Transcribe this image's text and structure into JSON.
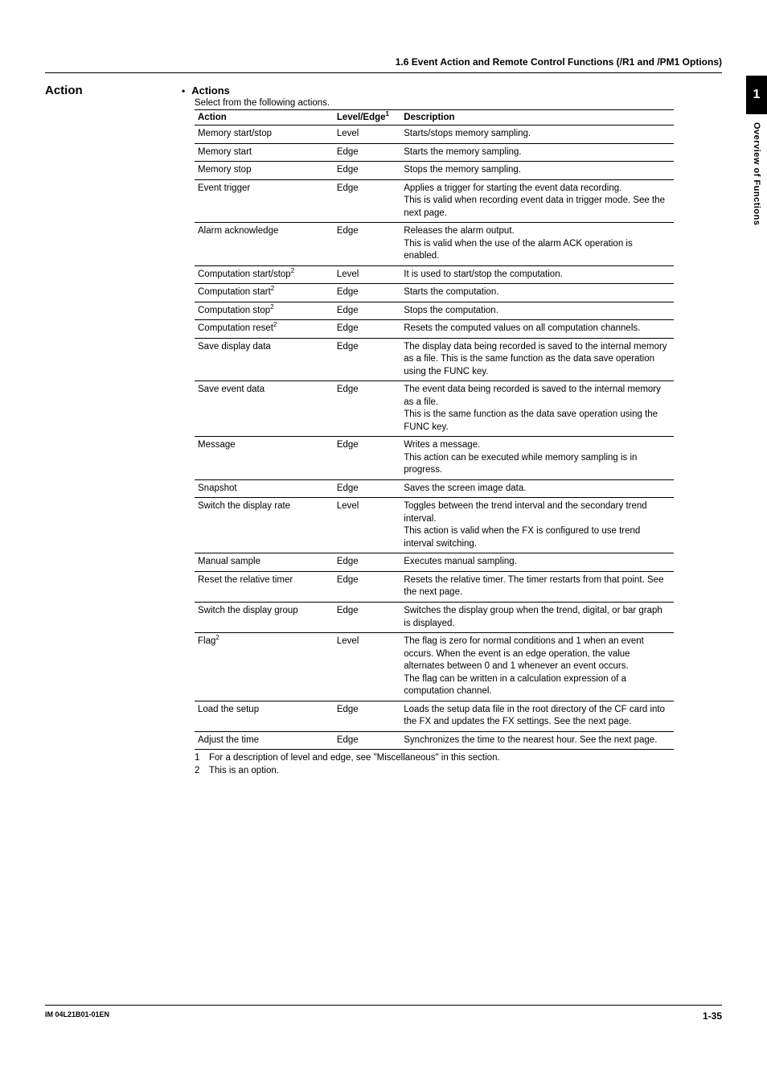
{
  "header": {
    "section_title": "1.6  Event Action and Remote Control Functions (/R1 and /PM1 Options)"
  },
  "side_heading": "Action",
  "bullet_title": "Actions",
  "intro": "Select from the following actions.",
  "columns": {
    "action": "Action",
    "level_edge": "Level/Edge",
    "level_edge_sup": "1",
    "description": "Description"
  },
  "rows": [
    {
      "action": "Memory start/stop",
      "level": "Level",
      "desc": "Starts/stops memory sampling."
    },
    {
      "action": "Memory start",
      "level": "Edge",
      "desc": "Starts the memory sampling."
    },
    {
      "action": "Memory stop",
      "level": "Edge",
      "desc": "Stops the memory sampling."
    },
    {
      "action": "Event trigger",
      "level": "Edge",
      "desc": "Applies a trigger for starting the event data recording.\nThis is valid when recording event data in trigger mode. See the next page."
    },
    {
      "action": "Alarm acknowledge",
      "level": "Edge",
      "desc": "Releases the alarm output.\nThis is valid when the use of the alarm ACK operation is enabled."
    },
    {
      "action": "Computation start/stop",
      "action_sup": "2",
      "level": "Level",
      "desc": "It is used to start/stop the computation."
    },
    {
      "action": "Computation start",
      "action_sup": "2",
      "level": "Edge",
      "desc": "Starts the computation."
    },
    {
      "action": "Computation stop",
      "action_sup": "2",
      "level": "Edge",
      "desc": "Stops the computation."
    },
    {
      "action": "Computation reset",
      "action_sup": "2",
      "level": "Edge",
      "desc": "Resets the computed values on all computation channels."
    },
    {
      "action": "Save display data",
      "level": "Edge",
      "desc": "The display data being recorded is saved to the internal memory as a file. This is the same function as the data save operation using the FUNC key."
    },
    {
      "action": "Save event data",
      "level": "Edge",
      "desc": "The event data being recorded is saved to the internal memory as a file.\nThis is the same function as the data save operation using the FUNC key."
    },
    {
      "action": "Message",
      "level": "Edge",
      "desc": "Writes a message.\nThis action can be executed while memory sampling is in progress."
    },
    {
      "action": "Snapshot",
      "level": "Edge",
      "desc": "Saves the screen image data."
    },
    {
      "action": "Switch the display rate",
      "level": "Level",
      "desc": "Toggles between the trend interval and the secondary trend interval.\nThis action is valid when the FX is configured to use trend interval switching."
    },
    {
      "action": "Manual sample",
      "level": "Edge",
      "desc": "Executes manual sampling."
    },
    {
      "action": "Reset the relative timer",
      "level": "Edge",
      "desc": "Resets the relative timer. The timer restarts from that point. See the next page."
    },
    {
      "action": "Switch the display group",
      "level": "Edge",
      "desc": "Switches the display group when the trend, digital, or bar graph is displayed."
    },
    {
      "action": "Flag",
      "action_sup": "2",
      "level": "Level",
      "desc": "The flag is zero for normal conditions and 1 when an event occurs. When the event is an edge operation, the value alternates between 0 and 1 whenever an event occurs.\nThe flag can be written in a calculation expression of a computation channel."
    },
    {
      "action": "Load the setup",
      "level": "Edge",
      "desc": "Loads the setup data file in the root directory of the CF card into the FX and updates the FX settings. See the next page."
    },
    {
      "action": "Adjust the time",
      "level": "Edge",
      "desc": "Synchronizes the time to the nearest hour. See the next page."
    }
  ],
  "footnotes": [
    {
      "num": "1",
      "text": "For a description of level and edge, see \"Miscellaneous\" in this section."
    },
    {
      "num": "2",
      "text": "This is an option."
    }
  ],
  "side_tab": {
    "number": "1",
    "text": "Overview of Functions"
  },
  "footer": {
    "left": "IM 04L21B01-01EN",
    "right": "1-35"
  }
}
